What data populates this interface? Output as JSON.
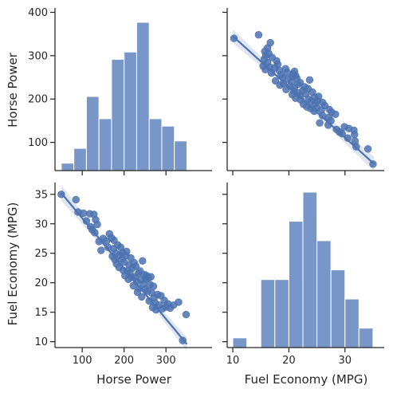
{
  "colors": {
    "series": "#4c72b0",
    "bar_fill": "#7897c8",
    "band": "#c9d4e8",
    "axis": "#262626"
  },
  "chart_data": {
    "type": "scatter",
    "figure": "pairplot",
    "variables": [
      "Horse Power",
      "Fuel Economy (MPG)"
    ],
    "axis_labels": {
      "y_top": "Horse Power",
      "y_bottom": "Fuel Economy (MPG)",
      "x_left": "Horse Power",
      "x_right": "Fuel Economy (MPG)"
    },
    "ranges": {
      "Horse Power": [
        35,
        410
      ],
      "Fuel Economy (MPG)": [
        9,
        37
      ]
    },
    "ticks": {
      "Horse Power": [
        100,
        200,
        300,
        400
      ],
      "Horse Power_x": [
        100,
        200,
        300
      ],
      "Fuel Economy (MPG)": [
        10,
        15,
        20,
        25,
        30,
        35
      ],
      "Fuel Economy (MPG)_x": [
        10,
        20,
        30
      ]
    },
    "hp_histogram": {
      "bin_edges": [
        50,
        80,
        110,
        140,
        170,
        200,
        230,
        260,
        290,
        320,
        350
      ],
      "counts": [
        1,
        3,
        10,
        7,
        15,
        16,
        20,
        7,
        6,
        4
      ]
    },
    "mpg_histogram": {
      "bin_edges": [
        10,
        12.5,
        15,
        17.5,
        20,
        22.5,
        25,
        27.5,
        30,
        32.5,
        35
      ],
      "counts": [
        1,
        0,
        7,
        7,
        13,
        16,
        11,
        8,
        5,
        2
      ]
    },
    "regression": {
      "slope": -0.0855,
      "intercept": 39.5
    },
    "points_hp_mpg": [
      [
        50,
        35.0
      ],
      [
        85,
        34.1
      ],
      [
        90,
        32.0
      ],
      [
        103,
        31.8
      ],
      [
        110,
        30.5
      ],
      [
        118,
        31.7
      ],
      [
        120,
        29.5
      ],
      [
        124,
        29.0
      ],
      [
        128,
        31.6
      ],
      [
        130,
        28.5
      ],
      [
        132,
        30.7
      ],
      [
        136,
        29.9
      ],
      [
        140,
        27.0
      ],
      [
        145,
        25.5
      ],
      [
        150,
        27.5
      ],
      [
        158,
        27.1
      ],
      [
        162,
        26.0
      ],
      [
        165,
        28.3
      ],
      [
        170,
        27.6
      ],
      [
        172,
        24.5
      ],
      [
        175,
        25.8
      ],
      [
        176,
        27.2
      ],
      [
        178,
        23.9
      ],
      [
        180,
        25.0
      ],
      [
        182,
        23.2
      ],
      [
        185,
        26.4
      ],
      [
        188,
        22.6
      ],
      [
        190,
        24.7
      ],
      [
        192,
        26.0
      ],
      [
        195,
        24.0
      ],
      [
        196,
        25.1
      ],
      [
        198,
        22.1
      ],
      [
        200,
        23.5
      ],
      [
        202,
        21.2
      ],
      [
        204,
        24.6
      ],
      [
        206,
        25.3
      ],
      [
        208,
        22.0
      ],
      [
        210,
        20.6
      ],
      [
        212,
        23.0
      ],
      [
        214,
        21.7
      ],
      [
        216,
        24.2
      ],
      [
        218,
        20.9
      ],
      [
        220,
        22.5
      ],
      [
        222,
        19.5
      ],
      [
        224,
        23.4
      ],
      [
        226,
        21.0
      ],
      [
        228,
        22.8
      ],
      [
        230,
        20.2
      ],
      [
        232,
        18.4
      ],
      [
        234,
        21.6
      ],
      [
        236,
        19.0
      ],
      [
        238,
        22.0
      ],
      [
        240,
        20.5
      ],
      [
        242,
        17.6
      ],
      [
        244,
        23.7
      ],
      [
        246,
        19.8
      ],
      [
        248,
        21.4
      ],
      [
        250,
        18.9
      ],
      [
        252,
        20.6
      ],
      [
        254,
        21.2
      ],
      [
        256,
        18.6
      ],
      [
        258,
        20.8
      ],
      [
        260,
        16.9
      ],
      [
        262,
        19.7
      ],
      [
        264,
        21.0
      ],
      [
        266,
        18.3
      ],
      [
        268,
        15.8
      ],
      [
        270,
        19.4
      ],
      [
        272,
        17.5
      ],
      [
        274,
        16.6
      ],
      [
        276,
        15.4
      ],
      [
        280,
        18.0
      ],
      [
        284,
        16.2
      ],
      [
        288,
        17.8
      ],
      [
        292,
        15.6
      ],
      [
        296,
        17.0
      ],
      [
        300,
        15.9
      ],
      [
        305,
        16.4
      ],
      [
        310,
        15.7
      ],
      [
        318,
        16.2
      ],
      [
        330,
        16.7
      ],
      [
        348,
        14.6
      ],
      [
        340,
        10.2
      ]
    ]
  }
}
